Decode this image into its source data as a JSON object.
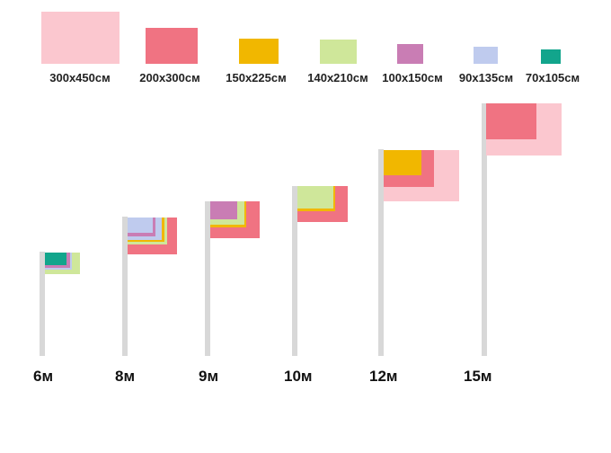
{
  "legend": {
    "items": [
      {
        "label": "300x450см",
        "color": "#fbc7cf"
      },
      {
        "label": "200x300см",
        "color": "#f07382"
      },
      {
        "label": "150x225см",
        "color": "#f1b700"
      },
      {
        "label": "140x210см",
        "color": "#cfe79a"
      },
      {
        "label": "100x150см",
        "color": "#c97db4"
      },
      {
        "label": "90x135см",
        "color": "#bfcbee"
      },
      {
        "label": "70x105см",
        "color": "#12a58c"
      }
    ]
  },
  "poles": [
    {
      "label": "6м",
      "flags": [
        "140x210см",
        "90x135см",
        "100x150см",
        "70x105см"
      ]
    },
    {
      "label": "8м",
      "flags": [
        "200x300см",
        "140x210см",
        "150x225см",
        "90x135см",
        "100x150см",
        "90x135см"
      ]
    },
    {
      "label": "9м",
      "flags": [
        "200x300см",
        "150x225см",
        "140x210см",
        "100x150см"
      ]
    },
    {
      "label": "10м",
      "flags": [
        "200x300см",
        "150x225см",
        "140x210см"
      ]
    },
    {
      "label": "12м",
      "flags": [
        "300x450см",
        "200x300см",
        "150x225см"
      ]
    },
    {
      "label": "15м",
      "flags": [
        "300x450см",
        "200x300см"
      ]
    }
  ]
}
